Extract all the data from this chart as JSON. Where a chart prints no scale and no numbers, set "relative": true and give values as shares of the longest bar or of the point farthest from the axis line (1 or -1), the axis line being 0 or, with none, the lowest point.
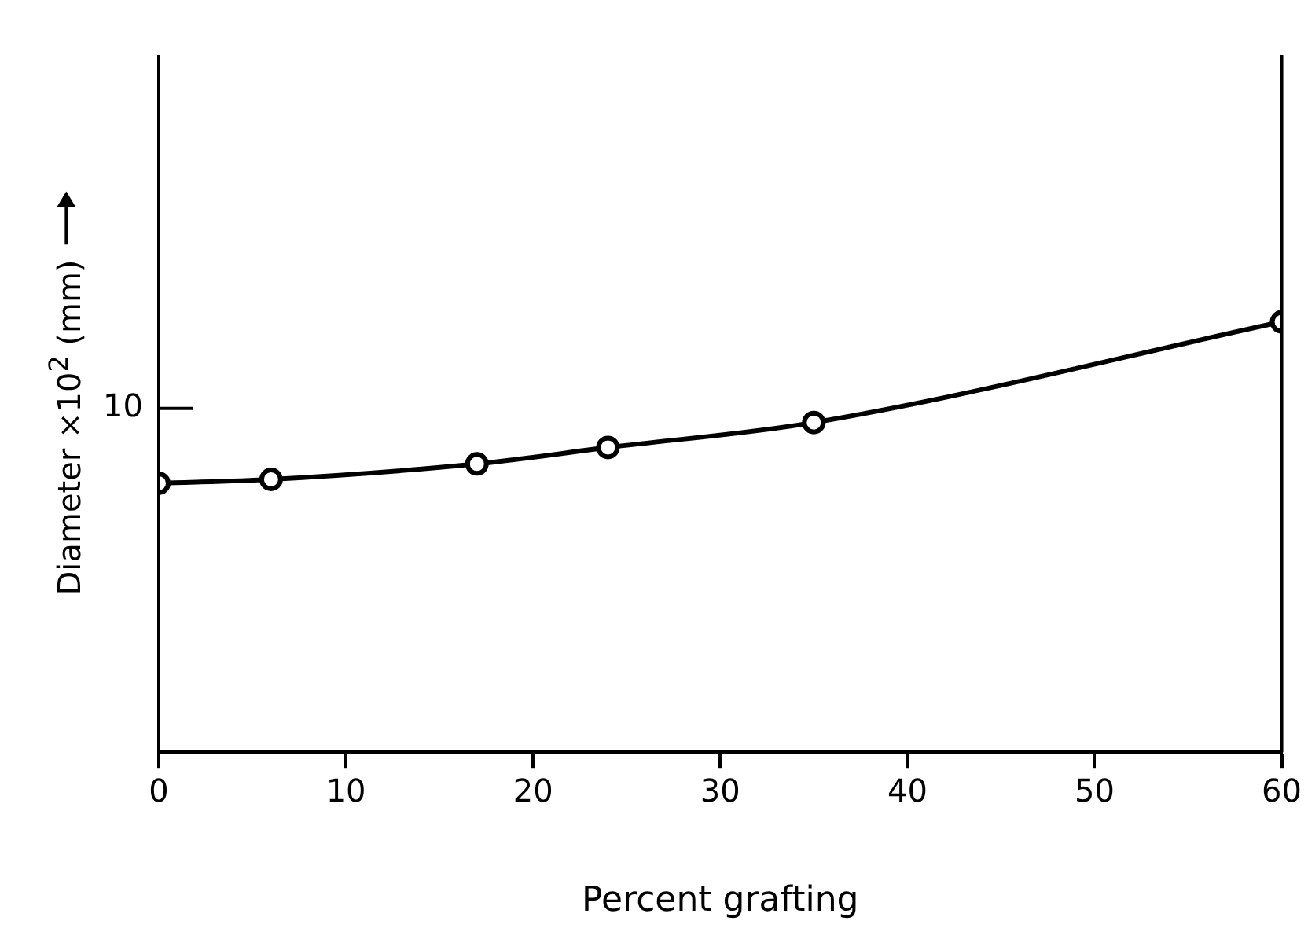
{
  "chart_data": {
    "type": "line",
    "xlabel": "Percent grafting",
    "ylabel": "Diameter ×10$^{2}$ (mm)",
    "relative": true,
    "x": [
      0,
      6,
      17,
      24,
      35,
      60
    ],
    "series": [
      {
        "color": "#000000",
        "values": [
          0.625,
          0.634,
          0.67,
          0.708,
          0.766,
          1
        ]
      }
    ],
    "xlim": [
      0,
      60
    ],
    "xticks": [
      0,
      10,
      20,
      30,
      40,
      50,
      60
    ],
    "annotations": [
      "10"
    ],
    "marker": "circle",
    "line_style": "solid",
    "grid": false,
    "legend": false
  }
}
